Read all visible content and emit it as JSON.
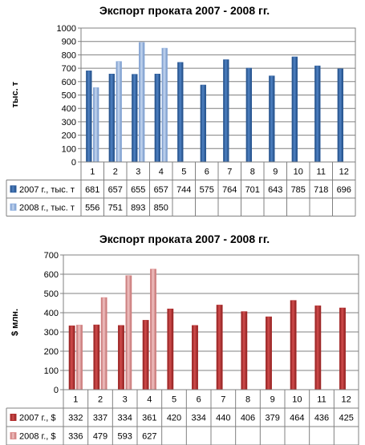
{
  "chart_data": [
    {
      "type": "bar",
      "title": "Экспорт проката 2007 - 2008 гг.",
      "ylabel": "тыс. т",
      "ylim": [
        0,
        1000
      ],
      "yticks": [
        0,
        100,
        200,
        300,
        400,
        500,
        600,
        700,
        800,
        900,
        1000
      ],
      "grid": true,
      "legend": "table",
      "categories": [
        "1",
        "2",
        "3",
        "4",
        "5",
        "6",
        "7",
        "8",
        "9",
        "10",
        "11",
        "12"
      ],
      "series": [
        {
          "name": "2007 г., тыс. т",
          "color": "#2f5f9e",
          "values": [
            681,
            657,
            655,
            657,
            744,
            575,
            764,
            701,
            643,
            785,
            718,
            696
          ]
        },
        {
          "name": "2008 г., тыс. т",
          "color": "#8fb0df",
          "values": [
            556,
            751,
            893,
            850,
            null,
            null,
            null,
            null,
            null,
            null,
            null,
            null
          ]
        }
      ]
    },
    {
      "type": "bar",
      "title": "Экспорт проката 2007 - 2008 гг.",
      "ylabel": "$ млн.",
      "ylim": [
        0,
        700
      ],
      "yticks": [
        0,
        100,
        200,
        300,
        400,
        500,
        600,
        700
      ],
      "grid": true,
      "legend": "table",
      "categories": [
        "1",
        "2",
        "3",
        "4",
        "5",
        "6",
        "7",
        "8",
        "9",
        "10",
        "11",
        "12"
      ],
      "series": [
        {
          "name": "2007 г., $",
          "color": "#b32d2d",
          "values": [
            332,
            337,
            334,
            361,
            420,
            334,
            440,
            406,
            379,
            464,
            436,
            425
          ]
        },
        {
          "name": "2008 г., $",
          "color": "#df9090",
          "values": [
            336,
            479,
            593,
            627,
            null,
            null,
            null,
            null,
            null,
            null,
            null,
            null
          ]
        }
      ]
    }
  ]
}
